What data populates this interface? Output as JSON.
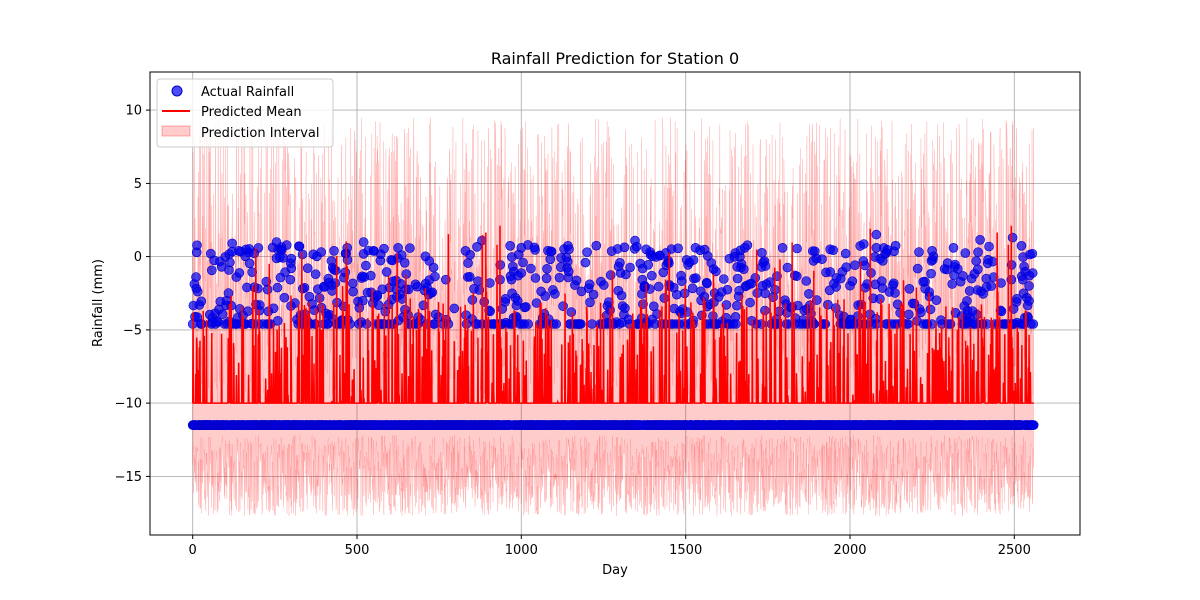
{
  "chart_data": {
    "type": "scatter",
    "title": "Rainfall Prediction for Station 0",
    "xlabel": "Day",
    "ylabel": "Rainfall (mm)",
    "xlim": [
      -130,
      2700
    ],
    "ylim": [
      -19,
      12.6
    ],
    "xticks": [
      0,
      500,
      1000,
      1500,
      2000,
      2500
    ],
    "yticks": [
      -15,
      -10,
      -5,
      0,
      5,
      10
    ],
    "grid": true,
    "legend_position": "top-left",
    "legend": [
      "Actual Rainfall",
      "Predicted Mean",
      "Prediction Interval"
    ],
    "n_days": 2560,
    "baseline_actual": -11.5,
    "baseline_predicted": -10.0,
    "interval_lower_range": [
      -17.7,
      -12.0
    ],
    "interval_upper_range": [
      -10.0,
      11.0
    ],
    "series": [
      {
        "name": "Actual Rainfall",
        "kind": "scatter",
        "color": "#0000ee",
        "note": "2560 daily values; most days at -11.5, rainy days between -4.6 and 1.5",
        "sample_points": [
          {
            "x": 0,
            "y": -4.6
          },
          {
            "x": 10,
            "y": -1.4
          },
          {
            "x": 20,
            "y": -3.3
          },
          {
            "x": 55,
            "y": 0.2
          },
          {
            "x": 120,
            "y": 0.9
          },
          {
            "x": 140,
            "y": 0.4
          },
          {
            "x": 255,
            "y": 1.0
          },
          {
            "x": 300,
            "y": -0.8
          },
          {
            "x": 325,
            "y": 0.7
          },
          {
            "x": 430,
            "y": 0.4
          },
          {
            "x": 470,
            "y": 0.6
          },
          {
            "x": 520,
            "y": 1.0
          },
          {
            "x": 550,
            "y": 0.4
          },
          {
            "x": 625,
            "y": 0.6
          },
          {
            "x": 680,
            "y": -4.6
          },
          {
            "x": 720,
            "y": -0.3
          },
          {
            "x": 830,
            "y": 0.4
          },
          {
            "x": 880,
            "y": 1.1
          },
          {
            "x": 1000,
            "y": 0.6
          },
          {
            "x": 1020,
            "y": 0.8
          },
          {
            "x": 1145,
            "y": 0.5
          },
          {
            "x": 1200,
            "y": 0.3
          },
          {
            "x": 1380,
            "y": 0.5
          },
          {
            "x": 1530,
            "y": 0.6
          },
          {
            "x": 1680,
            "y": 0.6
          },
          {
            "x": 1795,
            "y": 0.6
          },
          {
            "x": 1940,
            "y": 0.5
          },
          {
            "x": 2080,
            "y": 1.5
          },
          {
            "x": 2080,
            "y": 0.6
          },
          {
            "x": 2250,
            "y": 0.4
          },
          {
            "x": 2315,
            "y": 0.6
          },
          {
            "x": 2390,
            "y": 0.3
          },
          {
            "x": 2495,
            "y": 1.3
          },
          {
            "x": 2545,
            "y": -2.0
          },
          {
            "x": 2555,
            "y": 0.2
          }
        ]
      },
      {
        "name": "Predicted Mean",
        "kind": "line",
        "color": "#ff0000",
        "note": "baseline -10 with spikes up to about 2.7",
        "sample_points": [
          {
            "x": 0,
            "y": -8.7
          },
          {
            "x": 140,
            "y": 2.7
          },
          {
            "x": 215,
            "y": 2.3
          },
          {
            "x": 435,
            "y": 2.6
          },
          {
            "x": 490,
            "y": 1.4
          },
          {
            "x": 1060,
            "y": 2.2
          },
          {
            "x": 1470,
            "y": 1.1
          },
          {
            "x": 2315,
            "y": 1.3
          },
          {
            "x": 2490,
            "y": 1.0
          },
          {
            "x": 2560,
            "y": -10.0
          }
        ]
      },
      {
        "name": "Prediction Interval",
        "kind": "band",
        "color": "#ff0000",
        "opacity": 0.2,
        "lower_range": [
          -17.7,
          -12.0
        ],
        "upper_range": [
          -10.0,
          11.0
        ]
      }
    ]
  },
  "colors": {
    "actual": "#0000ee",
    "predicted": "#ff0000",
    "interval": "#ff0000",
    "grid": "#b0b0b0"
  }
}
